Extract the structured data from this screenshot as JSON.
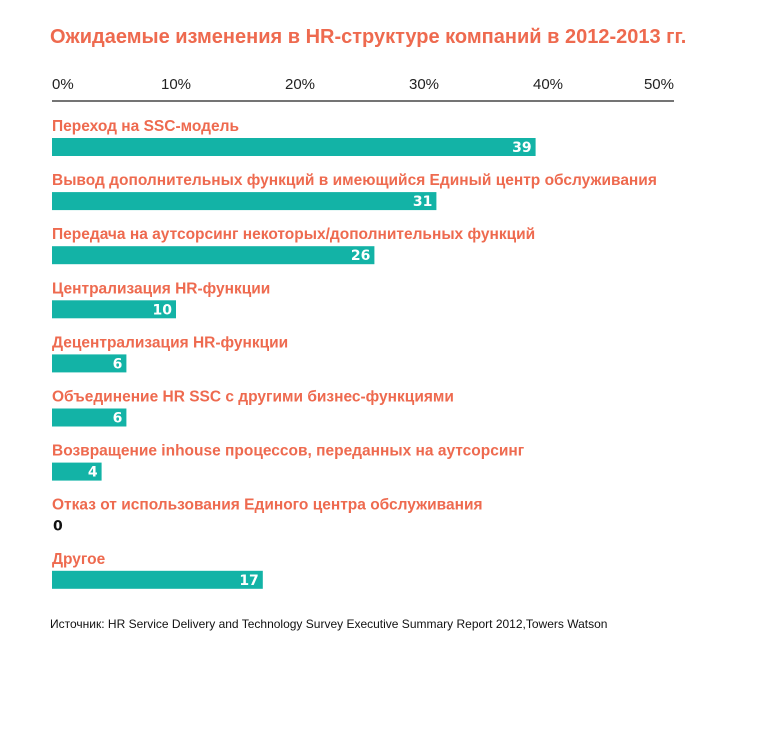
{
  "chart_data": {
    "type": "bar",
    "orientation": "horizontal",
    "title": "Ожидаемые изменения в HR-структуре компаний в 2012-2013 гг.",
    "xlim": [
      0,
      50
    ],
    "xticks": [
      "0%",
      "10%",
      "20%",
      "30%",
      "40%",
      "50%"
    ],
    "categories": [
      "Переход на SSC-модель",
      "Вывод дополнительных функций в имеющийся Единый центр обслуживания",
      "Передача на аутсорсинг некоторых/дополнительных функций",
      "Централизация HR-функции",
      "Децентрализация HR-функции",
      "Объединение HR SSC с другими бизнес-функциями",
      "Возвращение inhouse процессов, переданных на аутсорсинг",
      "Отказ от использования Единого центра обслуживания",
      "Другое"
    ],
    "values": [
      39,
      31,
      26,
      10,
      6,
      6,
      4,
      0,
      17
    ],
    "grid": false,
    "legend": "none"
  },
  "colors": {
    "bar": "#13b3a6",
    "title": "#ee6a4f",
    "category_label": "#ee6a4f",
    "axis": "#222222"
  },
  "source": "Источник: HR Service Delivery and Technology Survey Executive Summary Report 2012,Towers Watson"
}
